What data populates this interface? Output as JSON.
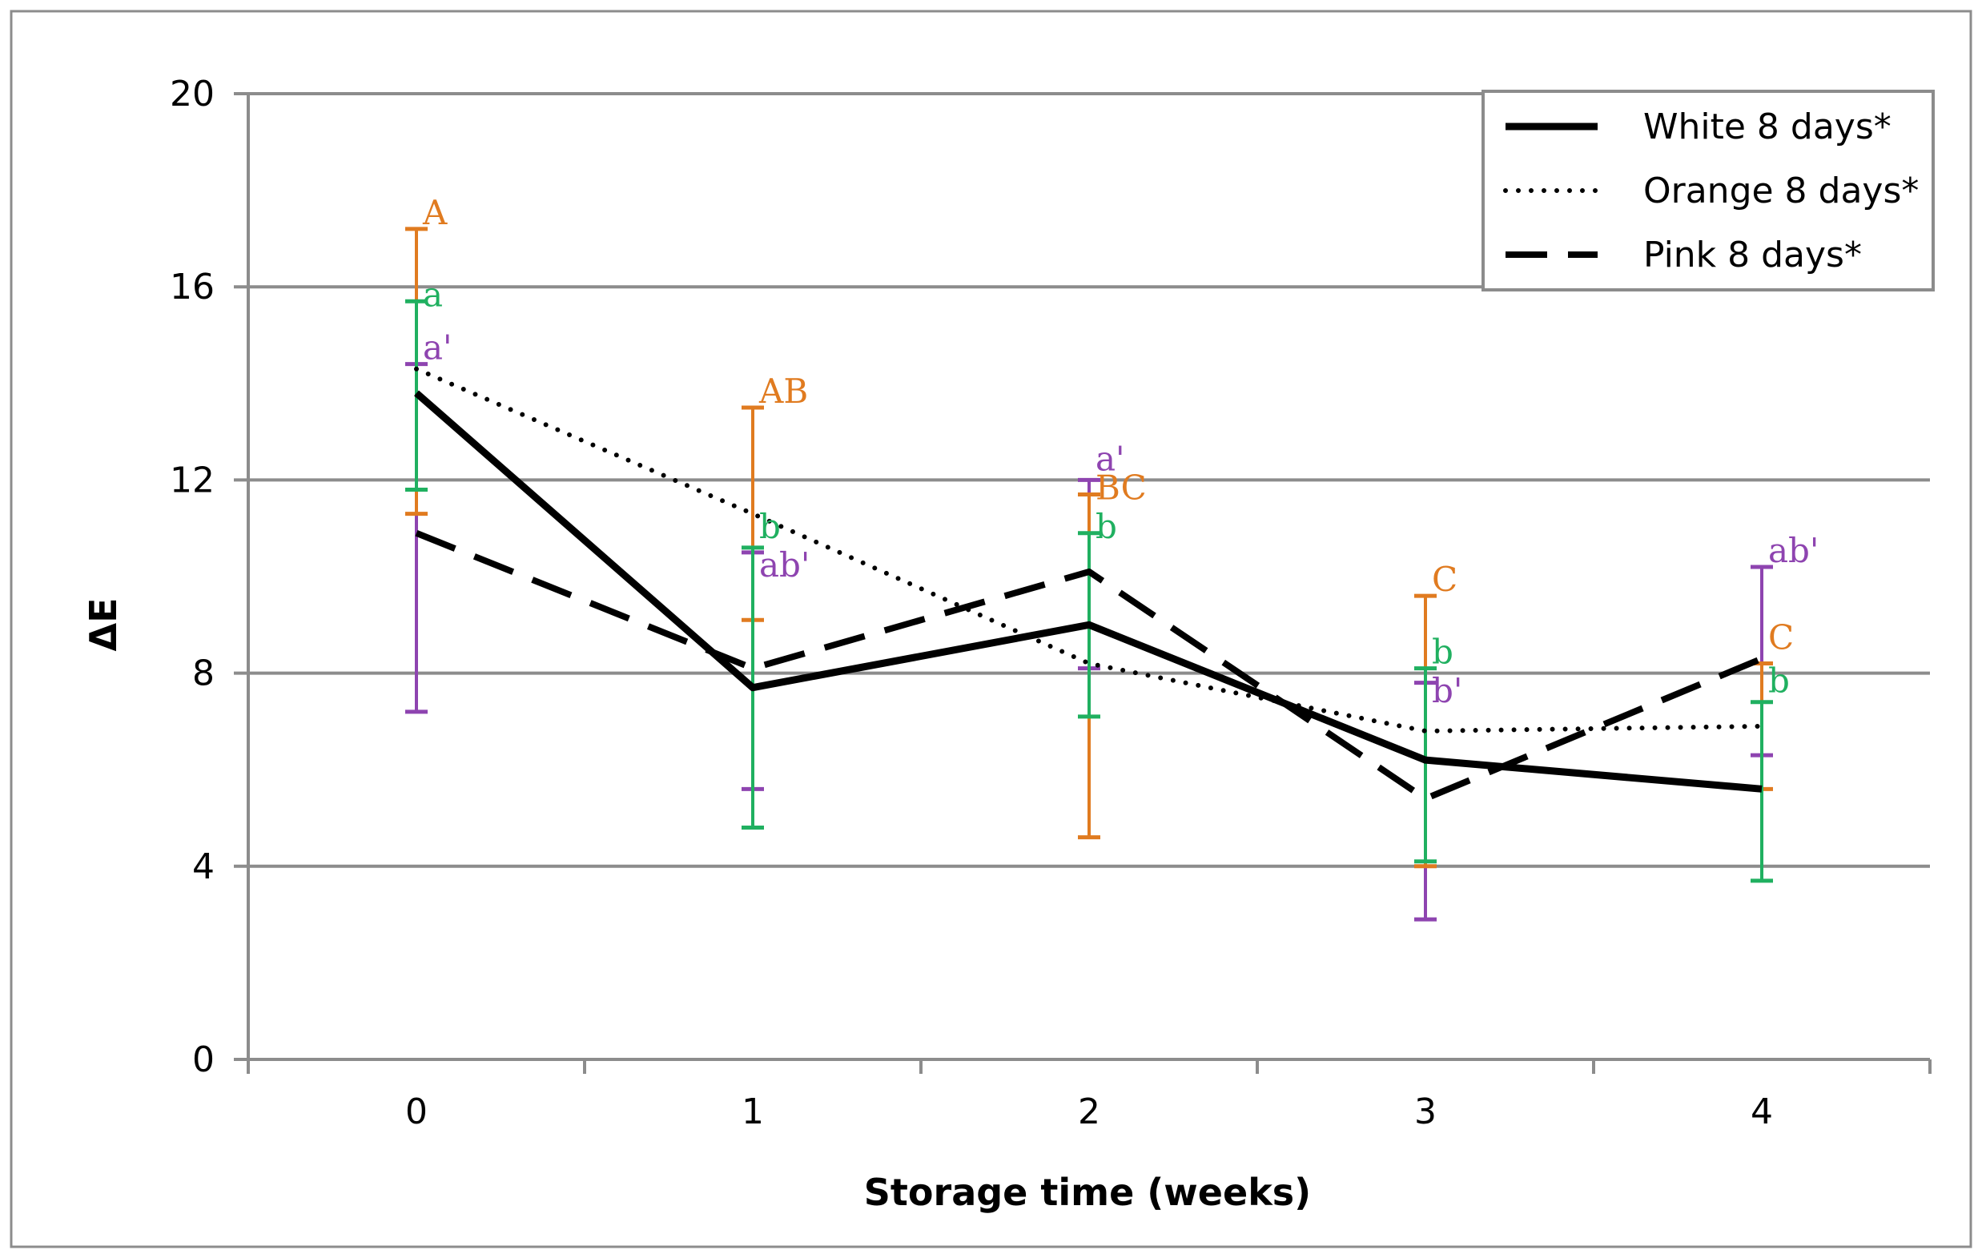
{
  "chart_data": {
    "type": "line",
    "title": "",
    "xlabel": "Storage time (weeks)",
    "ylabel": "ΔE",
    "x": [
      0,
      1,
      2,
      3,
      4
    ],
    "x_tick_labels": [
      "0",
      "1",
      "2",
      "3",
      "4"
    ],
    "ylim": [
      0,
      20
    ],
    "y_ticks": [
      0,
      4,
      8,
      12,
      16,
      20
    ],
    "y_tick_labels": [
      "0",
      "4",
      "8",
      "12",
      "16",
      "20"
    ],
    "grid": true,
    "legend_position": "top-right",
    "series": [
      {
        "name": "White 8 days*",
        "style": "solid",
        "color": "#000000",
        "error_color": "#8e44b0",
        "values": [
          13.8,
          7.7,
          9.0,
          6.2,
          5.6
        ],
        "error_low": [
          7.2,
          5.6,
          8.1,
          2.9,
          6.3
        ],
        "error_high": [
          14.4,
          10.5,
          12.0,
          7.8,
          10.2
        ]
      },
      {
        "name": "Orange 8 days*",
        "style": "dotted",
        "color": "#000000",
        "error_color": "#e07b20",
        "values": [
          14.3,
          11.3,
          8.2,
          6.8,
          6.9
        ],
        "error_low": [
          11.3,
          9.1,
          4.6,
          4.0,
          5.6
        ],
        "error_high": [
          17.2,
          13.5,
          11.7,
          9.6,
          8.2
        ]
      },
      {
        "name": "Pink 8 days*",
        "style": "dashed",
        "color": "#000000",
        "error_color": "#20b060",
        "values": [
          10.9,
          8.1,
          10.1,
          5.4,
          8.3
        ],
        "error_low": [
          11.8,
          4.8,
          7.1,
          4.1,
          3.7
        ],
        "error_high": [
          15.7,
          10.6,
          10.9,
          8.1,
          7.4
        ]
      }
    ],
    "annotations": [
      {
        "text": "A",
        "x": 0,
        "y": 17.3,
        "color": "#e07b20"
      },
      {
        "text": "a",
        "x": 0,
        "y": 15.6,
        "color": "#20b060"
      },
      {
        "text": "a'",
        "x": 0,
        "y": 14.5,
        "color": "#8e44b0"
      },
      {
        "text": "AB",
        "x": 1,
        "y": 13.6,
        "color": "#e07b20"
      },
      {
        "text": "b",
        "x": 1,
        "y": 10.8,
        "color": "#20b060"
      },
      {
        "text": "ab'",
        "x": 1,
        "y": 10.0,
        "color": "#8e44b0"
      },
      {
        "text": "a'",
        "x": 2,
        "y": 12.2,
        "color": "#8e44b0"
      },
      {
        "text": "BC",
        "x": 2,
        "y": 11.6,
        "color": "#e07b20"
      },
      {
        "text": "b",
        "x": 2,
        "y": 10.8,
        "color": "#20b060"
      },
      {
        "text": "C",
        "x": 3,
        "y": 9.7,
        "color": "#e07b20"
      },
      {
        "text": "b",
        "x": 3,
        "y": 8.2,
        "color": "#20b060"
      },
      {
        "text": "b'",
        "x": 3,
        "y": 7.4,
        "color": "#8e44b0"
      },
      {
        "text": "ab'",
        "x": 4,
        "y": 10.3,
        "color": "#8e44b0"
      },
      {
        "text": "C",
        "x": 4,
        "y": 8.5,
        "color": "#e07b20"
      },
      {
        "text": "b",
        "x": 4,
        "y": 7.6,
        "color": "#20b060"
      }
    ]
  }
}
